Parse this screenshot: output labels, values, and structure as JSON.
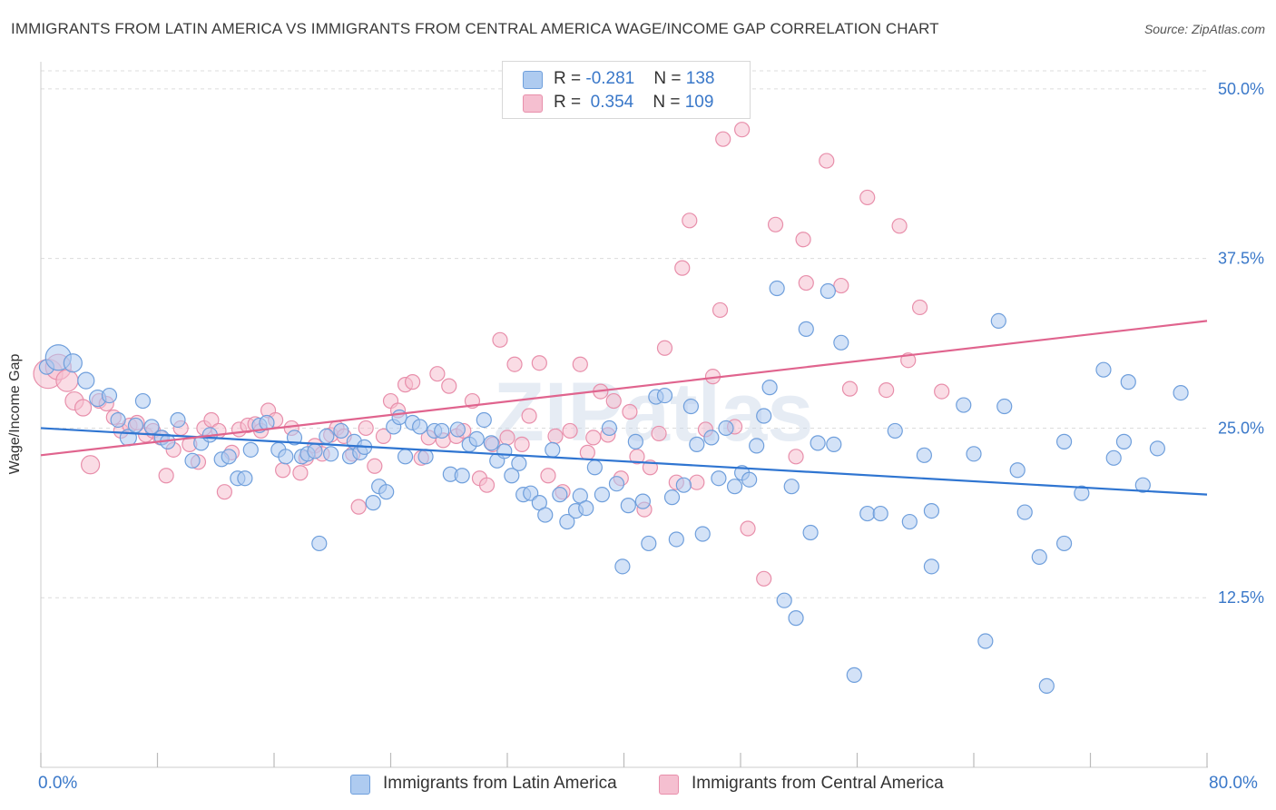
{
  "title": "IMMIGRANTS FROM LATIN AMERICA VS IMMIGRANTS FROM CENTRAL AMERICA WAGE/INCOME GAP CORRELATION CHART",
  "source": "Source: ZipAtlas.com",
  "watermark": "ZIPatlas",
  "colors": {
    "blue_fill": "#aecbf0",
    "blue_stroke": "#6f9fdc",
    "blue_line": "#2f75d1",
    "pink_fill": "#f5bfd0",
    "pink_stroke": "#e88fab",
    "pink_line": "#e0648e",
    "axis_text": "#3a78c9",
    "grid": "#dcdcdc"
  },
  "legend": {
    "blue": {
      "r_label": "R = ",
      "r_value": "-0.281",
      "n_label": "N = ",
      "n_value": "138"
    },
    "pink": {
      "r_label": "R = ",
      "r_value": "0.354",
      "n_label": "N = ",
      "n_value": "109"
    }
  },
  "x_axis": {
    "min_label": "0.0%",
    "max_label": "80.0%"
  },
  "chart_data": {
    "type": "scatter",
    "title": "IMMIGRANTS FROM LATIN AMERICA VS IMMIGRANTS FROM CENTRAL AMERICA WAGE/INCOME GAP CORRELATION CHART",
    "xlabel": "",
    "ylabel": "Wage/Income Gap",
    "xlim": [
      0,
      80
    ],
    "ylim": [
      0,
      52
    ],
    "y_ticks": [
      {
        "value": 12.5,
        "label": "12.5%"
      },
      {
        "value": 25.0,
        "label": "25.0%"
      },
      {
        "value": 37.5,
        "label": "37.5%"
      },
      {
        "value": 50.0,
        "label": "50.0%"
      }
    ],
    "grid": true,
    "series": [
      {
        "name": "Immigrants from Latin America",
        "color": "#6f9fdc",
        "trend": {
          "x": [
            0,
            80
          ],
          "y": [
            25.0,
            20.1
          ]
        },
        "points": [
          [
            0.4,
            29.5,
            8
          ],
          [
            1.2,
            30.2,
            14
          ],
          [
            2.2,
            29.8,
            10
          ],
          [
            3.1,
            28.5,
            9
          ],
          [
            3.9,
            27.2,
            9
          ],
          [
            4.7,
            27.4,
            8
          ],
          [
            5.3,
            25.6,
            8
          ],
          [
            6.0,
            24.3,
            9
          ],
          [
            6.5,
            25.2,
            8
          ],
          [
            7.0,
            27.0,
            8
          ],
          [
            7.6,
            25.1,
            8
          ],
          [
            8.3,
            24.3,
            8
          ],
          [
            8.7,
            24.0,
            8
          ],
          [
            9.4,
            25.6,
            8
          ],
          [
            10.4,
            22.6,
            8
          ],
          [
            11.0,
            23.9,
            8
          ],
          [
            11.6,
            24.5,
            8
          ],
          [
            12.4,
            22.7,
            8
          ],
          [
            12.9,
            22.9,
            8
          ],
          [
            13.5,
            21.3,
            8
          ],
          [
            14.0,
            21.3,
            8
          ],
          [
            14.4,
            23.4,
            8
          ],
          [
            15.0,
            25.2,
            8
          ],
          [
            15.5,
            25.4,
            8
          ],
          [
            16.3,
            23.4,
            8
          ],
          [
            16.8,
            22.9,
            8
          ],
          [
            17.4,
            24.3,
            8
          ],
          [
            17.9,
            22.9,
            8
          ],
          [
            18.3,
            23.1,
            8
          ],
          [
            18.8,
            23.3,
            8
          ],
          [
            19.1,
            16.5,
            8
          ],
          [
            19.6,
            24.4,
            8
          ],
          [
            19.9,
            23.1,
            8
          ],
          [
            20.6,
            24.8,
            8
          ],
          [
            21.2,
            22.9,
            8
          ],
          [
            21.5,
            24.0,
            8
          ],
          [
            21.9,
            23.2,
            8
          ],
          [
            22.2,
            23.6,
            8
          ],
          [
            22.8,
            19.5,
            8
          ],
          [
            23.2,
            20.7,
            8
          ],
          [
            23.7,
            20.3,
            8
          ],
          [
            24.2,
            25.1,
            8
          ],
          [
            24.6,
            25.8,
            8
          ],
          [
            25.0,
            22.9,
            8
          ],
          [
            25.5,
            25.4,
            8
          ],
          [
            26.0,
            25.1,
            8
          ],
          [
            26.4,
            22.9,
            8
          ],
          [
            27.0,
            24.8,
            8
          ],
          [
            27.5,
            24.8,
            8
          ],
          [
            28.1,
            21.6,
            8
          ],
          [
            28.6,
            24.9,
            8
          ],
          [
            28.9,
            21.5,
            8
          ],
          [
            29.4,
            23.8,
            8
          ],
          [
            29.9,
            24.2,
            8
          ],
          [
            30.4,
            25.6,
            8
          ],
          [
            30.9,
            23.9,
            8
          ],
          [
            31.3,
            22.6,
            8
          ],
          [
            31.8,
            23.3,
            8
          ],
          [
            32.3,
            21.5,
            8
          ],
          [
            32.8,
            22.4,
            8
          ],
          [
            33.1,
            20.1,
            8
          ],
          [
            33.6,
            20.2,
            8
          ],
          [
            34.2,
            19.5,
            8
          ],
          [
            34.6,
            18.6,
            8
          ],
          [
            35.1,
            23.4,
            8
          ],
          [
            35.6,
            20.1,
            8
          ],
          [
            36.1,
            18.1,
            8
          ],
          [
            36.7,
            18.9,
            8
          ],
          [
            37.0,
            20.0,
            8
          ],
          [
            37.4,
            19.1,
            8
          ],
          [
            38.0,
            22.1,
            8
          ],
          [
            38.5,
            20.1,
            8
          ],
          [
            39.0,
            25.0,
            8
          ],
          [
            39.5,
            20.9,
            8
          ],
          [
            39.9,
            14.8,
            8
          ],
          [
            40.3,
            19.3,
            8
          ],
          [
            40.8,
            24.0,
            8
          ],
          [
            41.3,
            19.6,
            8
          ],
          [
            41.7,
            16.5,
            8
          ],
          [
            42.2,
            27.3,
            8
          ],
          [
            42.8,
            27.4,
            8
          ],
          [
            43.3,
            19.9,
            8
          ],
          [
            43.6,
            16.8,
            8
          ],
          [
            44.1,
            20.8,
            8
          ],
          [
            44.6,
            26.6,
            8
          ],
          [
            45.0,
            23.8,
            8
          ],
          [
            45.4,
            17.2,
            8
          ],
          [
            46.0,
            24.3,
            8
          ],
          [
            46.5,
            21.3,
            8
          ],
          [
            47.0,
            25.0,
            8
          ],
          [
            47.6,
            20.7,
            8
          ],
          [
            48.1,
            21.7,
            8
          ],
          [
            48.6,
            21.2,
            8
          ],
          [
            49.1,
            23.7,
            8
          ],
          [
            49.6,
            25.9,
            8
          ],
          [
            50.0,
            28.0,
            8
          ],
          [
            50.5,
            35.3,
            8
          ],
          [
            51.0,
            12.3,
            8
          ],
          [
            51.5,
            20.7,
            8
          ],
          [
            51.8,
            11.0,
            8
          ],
          [
            52.5,
            32.3,
            8
          ],
          [
            52.8,
            17.3,
            8
          ],
          [
            53.3,
            23.9,
            8
          ],
          [
            54.0,
            35.1,
            8
          ],
          [
            54.4,
            23.8,
            8
          ],
          [
            54.9,
            31.3,
            8
          ],
          [
            55.8,
            6.8,
            8
          ],
          [
            56.7,
            18.7,
            8
          ],
          [
            57.6,
            18.7,
            8
          ],
          [
            58.6,
            24.8,
            8
          ],
          [
            59.6,
            18.1,
            8
          ],
          [
            60.6,
            23.0,
            8
          ],
          [
            61.1,
            14.8,
            8
          ],
          [
            61.1,
            18.9,
            8
          ],
          [
            63.3,
            26.7,
            8
          ],
          [
            64.0,
            23.1,
            8
          ],
          [
            65.7,
            32.9,
            8
          ],
          [
            66.1,
            26.6,
            8
          ],
          [
            67.0,
            21.9,
            8
          ],
          [
            67.5,
            18.8,
            8
          ],
          [
            68.5,
            15.5,
            8
          ],
          [
            70.2,
            16.5,
            8
          ],
          [
            70.2,
            24.0,
            8
          ],
          [
            71.4,
            20.2,
            8
          ],
          [
            72.9,
            29.3,
            8
          ],
          [
            73.6,
            22.8,
            8
          ],
          [
            74.3,
            24.0,
            8
          ],
          [
            74.6,
            28.4,
            8
          ],
          [
            75.6,
            20.8,
            8
          ],
          [
            76.6,
            23.5,
            8
          ],
          [
            78.2,
            27.6,
            8
          ],
          [
            64.8,
            9.3,
            8
          ],
          [
            69.0,
            6.0,
            8
          ]
        ]
      },
      {
        "name": "Immigrants from Central America",
        "color": "#e88fab",
        "trend": {
          "x": [
            0,
            80
          ],
          "y": [
            23.0,
            32.9
          ]
        },
        "points": [
          [
            0.5,
            29.0,
            16
          ],
          [
            1.2,
            29.5,
            14
          ],
          [
            1.8,
            28.5,
            12
          ],
          [
            2.3,
            27.0,
            10
          ],
          [
            2.9,
            26.5,
            9
          ],
          [
            3.4,
            22.3,
            10
          ],
          [
            4.0,
            27.0,
            8
          ],
          [
            4.5,
            26.8,
            8
          ],
          [
            5.0,
            25.8,
            8
          ],
          [
            5.5,
            24.8,
            8
          ],
          [
            6.1,
            25.2,
            8
          ],
          [
            6.6,
            25.4,
            8
          ],
          [
            7.2,
            24.5,
            8
          ],
          [
            7.7,
            24.8,
            8
          ],
          [
            8.2,
            24.3,
            8
          ],
          [
            8.6,
            21.5,
            8
          ],
          [
            9.1,
            23.4,
            8
          ],
          [
            9.6,
            25.0,
            8
          ],
          [
            10.2,
            23.8,
            8
          ],
          [
            10.8,
            22.5,
            8
          ],
          [
            11.2,
            25.0,
            8
          ],
          [
            11.7,
            25.6,
            8
          ],
          [
            12.2,
            24.8,
            8
          ],
          [
            12.6,
            20.3,
            8
          ],
          [
            13.1,
            23.2,
            8
          ],
          [
            13.6,
            24.9,
            8
          ],
          [
            14.2,
            25.2,
            8
          ],
          [
            14.7,
            25.3,
            8
          ],
          [
            15.1,
            24.8,
            8
          ],
          [
            15.6,
            26.3,
            8
          ],
          [
            16.1,
            25.6,
            8
          ],
          [
            16.6,
            21.9,
            8
          ],
          [
            17.2,
            25.0,
            8
          ],
          [
            17.8,
            21.7,
            8
          ],
          [
            18.2,
            22.8,
            8
          ],
          [
            18.8,
            23.7,
            8
          ],
          [
            19.3,
            23.1,
            8
          ],
          [
            19.9,
            24.5,
            8
          ],
          [
            20.3,
            25.0,
            8
          ],
          [
            20.8,
            24.4,
            8
          ],
          [
            21.4,
            23.1,
            8
          ],
          [
            21.8,
            19.2,
            8
          ],
          [
            22.3,
            25.0,
            8
          ],
          [
            22.9,
            22.2,
            8
          ],
          [
            23.5,
            24.4,
            8
          ],
          [
            24.0,
            27.0,
            8
          ],
          [
            24.5,
            26.3,
            8
          ],
          [
            25.0,
            28.2,
            8
          ],
          [
            25.5,
            28.4,
            8
          ],
          [
            26.1,
            22.8,
            8
          ],
          [
            26.6,
            24.3,
            8
          ],
          [
            27.2,
            29.0,
            8
          ],
          [
            27.6,
            24.1,
            8
          ],
          [
            28.0,
            28.1,
            8
          ],
          [
            28.5,
            24.4,
            8
          ],
          [
            29.0,
            24.8,
            8
          ],
          [
            29.6,
            27.0,
            8
          ],
          [
            30.1,
            21.3,
            8
          ],
          [
            30.6,
            20.8,
            8
          ],
          [
            31.0,
            23.8,
            8
          ],
          [
            31.5,
            31.5,
            8
          ],
          [
            32.0,
            24.3,
            8
          ],
          [
            32.5,
            29.7,
            8
          ],
          [
            33.0,
            23.8,
            8
          ],
          [
            33.5,
            25.9,
            8
          ],
          [
            34.2,
            29.8,
            8
          ],
          [
            34.8,
            21.5,
            8
          ],
          [
            35.3,
            24.4,
            8
          ],
          [
            35.8,
            20.3,
            8
          ],
          [
            36.3,
            24.8,
            8
          ],
          [
            37.0,
            29.7,
            8
          ],
          [
            37.5,
            23.2,
            8
          ],
          [
            37.9,
            24.3,
            8
          ],
          [
            38.4,
            27.7,
            8
          ],
          [
            38.9,
            24.5,
            8
          ],
          [
            39.3,
            27.0,
            8
          ],
          [
            39.8,
            21.3,
            8
          ],
          [
            40.4,
            26.2,
            8
          ],
          [
            40.9,
            22.9,
            8
          ],
          [
            41.4,
            19.0,
            8
          ],
          [
            41.8,
            22.1,
            8
          ],
          [
            42.4,
            24.6,
            8
          ],
          [
            42.8,
            30.9,
            8
          ],
          [
            43.6,
            21.0,
            8
          ],
          [
            44.0,
            36.8,
            8
          ],
          [
            44.5,
            40.3,
            8
          ],
          [
            45.0,
            21.0,
            8
          ],
          [
            45.6,
            24.9,
            8
          ],
          [
            46.1,
            28.8,
            8
          ],
          [
            46.6,
            33.7,
            8
          ],
          [
            46.8,
            46.3,
            8
          ],
          [
            47.6,
            25.1,
            8
          ],
          [
            48.1,
            47.0,
            8
          ],
          [
            48.5,
            17.6,
            8
          ],
          [
            49.6,
            13.9,
            8
          ],
          [
            50.4,
            40.0,
            8
          ],
          [
            51.8,
            22.9,
            8
          ],
          [
            52.3,
            38.9,
            8
          ],
          [
            52.5,
            35.7,
            8
          ],
          [
            53.9,
            44.7,
            8
          ],
          [
            54.9,
            35.5,
            8
          ],
          [
            55.5,
            27.9,
            8
          ],
          [
            56.7,
            42.0,
            8
          ],
          [
            58.0,
            27.8,
            8
          ],
          [
            58.9,
            39.9,
            8
          ],
          [
            59.5,
            30.0,
            8
          ],
          [
            60.3,
            33.9,
            8
          ],
          [
            61.8,
            27.7,
            8
          ]
        ]
      }
    ]
  }
}
